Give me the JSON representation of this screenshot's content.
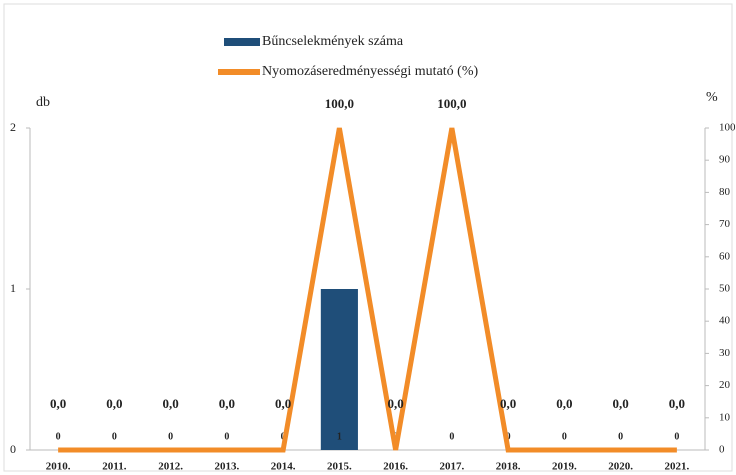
{
  "chart_data": {
    "type": "bar_line",
    "categories": [
      "2010.",
      "2011.",
      "2012.",
      "2013.",
      "2014.",
      "2015.",
      "2016.",
      "2017.",
      "2018.",
      "2019.",
      "2020.",
      "2021."
    ],
    "series": [
      {
        "name": "Bűncselekmények száma",
        "color": "#1f4e79",
        "type": "bar",
        "axis": "y",
        "values": [
          0,
          0,
          0,
          0,
          0,
          1,
          0,
          0,
          0,
          0,
          0,
          0
        ]
      },
      {
        "name": "Nyomozáseredményességi mutató (%)",
        "color": "#f28c28",
        "type": "line",
        "axis": "y2",
        "values": [
          0,
          0,
          0,
          0,
          0,
          100,
          0,
          100,
          0,
          0,
          0,
          0
        ],
        "value_labels": [
          "0,0",
          "0,0",
          "0,0",
          "0,0",
          "0,0",
          "100,0",
          "0,0",
          "100,0",
          "0,0",
          "0,0",
          "0,0",
          "0,0"
        ]
      }
    ],
    "y_label": "db",
    "y2_label": "%",
    "ylim": [
      0,
      2
    ],
    "yticks": [
      0,
      1,
      2
    ],
    "y2lim": [
      0,
      100
    ],
    "y2ticks": [
      0,
      10,
      20,
      30,
      40,
      50,
      60,
      70,
      80,
      90,
      100
    ]
  }
}
